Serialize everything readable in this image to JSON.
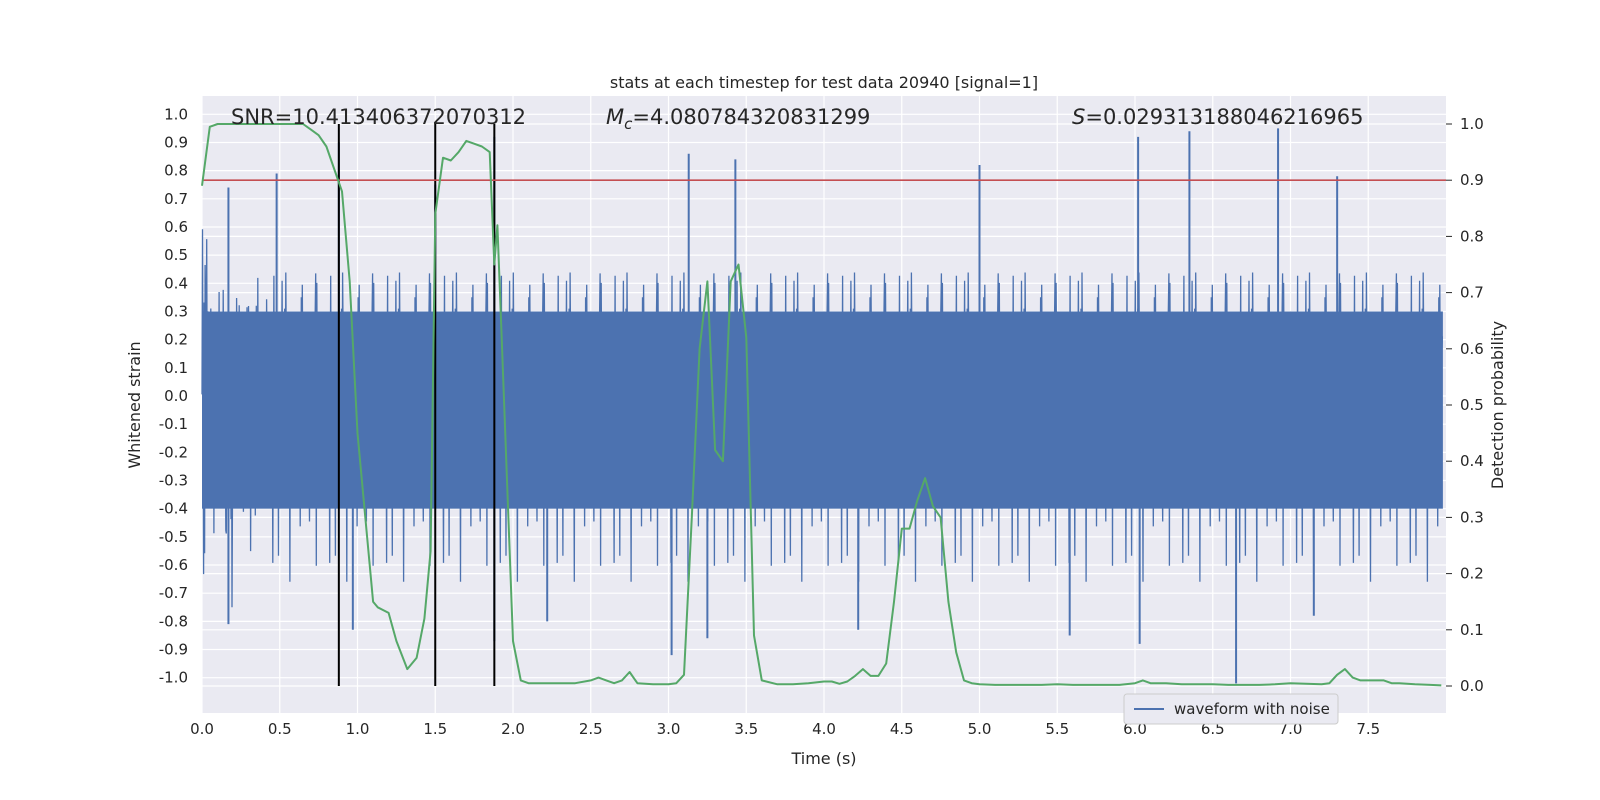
{
  "chart_data": {
    "type": "line",
    "title": "stats at each timestep for test data 20940 [signal=1]",
    "xlabel": "Time (s)",
    "ylabel": "Whitened strain",
    "y2label": "Detection probability",
    "xlim": [
      0.0,
      8.0
    ],
    "ylim": [
      -1.1,
      1.05
    ],
    "y2lim": [
      -0.05,
      1.03
    ],
    "xticks": [
      "0.0",
      "0.5",
      "1.0",
      "1.5",
      "2.0",
      "2.5",
      "3.0",
      "3.5",
      "4.0",
      "4.5",
      "5.0",
      "5.5",
      "6.0",
      "6.5",
      "7.0",
      "7.5"
    ],
    "yticks": [
      "1.0",
      "0.9",
      "0.8",
      "0.7",
      "0.6",
      "0.5",
      "0.4",
      "0.3",
      "0.2",
      "0.1",
      "0.0",
      "-0.1",
      "-0.2",
      "-0.3",
      "-0.4",
      "-0.5",
      "-0.6",
      "-0.7",
      "-0.8",
      "-0.9",
      "-1.0"
    ],
    "y2ticks": [
      "1.0",
      "0.9",
      "0.8",
      "0.7",
      "0.6",
      "0.5",
      "0.4",
      "0.3",
      "0.2",
      "0.1",
      "0.0"
    ],
    "annotations": {
      "snr": "SNR=10.413406372070312",
      "mc_symbol": "M",
      "mc_sub": "c",
      "mc_value": "=4.080784320831299",
      "s_symbol": "S",
      "s_value": "=0.029313188046216965"
    },
    "threshold": {
      "value": 0.9,
      "axis": "right",
      "color": "#c44e52"
    },
    "event_markers_s": [
      0.88,
      1.5,
      1.88
    ],
    "series": [
      {
        "name": "waveform with noise",
        "axis": "left",
        "color": "#4c72b0",
        "envelope": {
          "typical_amplitude": 0.42,
          "peaks": [
            {
              "t": 0.17,
              "v": 0.74
            },
            {
              "t": 0.48,
              "v": 0.79
            },
            {
              "t": 0.88,
              "v": 0.9
            },
            {
              "t": 1.5,
              "v": 0.75
            },
            {
              "t": 1.88,
              "v": 0.92
            },
            {
              "t": 3.13,
              "v": 0.86
            },
            {
              "t": 3.43,
              "v": 0.84
            },
            {
              "t": 5.0,
              "v": 0.82
            },
            {
              "t": 6.02,
              "v": 0.92
            },
            {
              "t": 6.35,
              "v": 0.94
            },
            {
              "t": 6.92,
              "v": 0.95
            },
            {
              "t": 7.3,
              "v": 0.78
            }
          ],
          "troughs": [
            {
              "t": 0.17,
              "v": -0.81
            },
            {
              "t": 0.97,
              "v": -0.83
            },
            {
              "t": 1.88,
              "v": -0.87
            },
            {
              "t": 2.22,
              "v": -0.8
            },
            {
              "t": 3.02,
              "v": -0.92
            },
            {
              "t": 3.25,
              "v": -0.86
            },
            {
              "t": 4.22,
              "v": -0.83
            },
            {
              "t": 5.58,
              "v": -0.85
            },
            {
              "t": 6.03,
              "v": -0.88
            },
            {
              "t": 6.65,
              "v": -1.02
            },
            {
              "t": 7.15,
              "v": -0.78
            }
          ]
        }
      },
      {
        "name": "detection probability",
        "axis": "right",
        "color": "#55a868",
        "x": [
          0.0,
          0.05,
          0.1,
          0.2,
          0.3,
          0.4,
          0.5,
          0.6,
          0.65,
          0.7,
          0.75,
          0.8,
          0.85,
          0.9,
          0.95,
          1.0,
          1.05,
          1.1,
          1.13,
          1.2,
          1.25,
          1.32,
          1.38,
          1.43,
          1.47,
          1.5,
          1.55,
          1.6,
          1.65,
          1.7,
          1.75,
          1.8,
          1.85,
          1.88,
          1.9,
          1.93,
          2.0,
          2.05,
          2.1,
          2.2,
          2.3,
          2.4,
          2.5,
          2.55,
          2.6,
          2.65,
          2.7,
          2.75,
          2.8,
          2.9,
          3.0,
          3.05,
          3.1,
          3.15,
          3.2,
          3.25,
          3.3,
          3.35,
          3.4,
          3.45,
          3.5,
          3.55,
          3.6,
          3.7,
          3.8,
          3.9,
          4.0,
          4.05,
          4.1,
          4.15,
          4.2,
          4.25,
          4.3,
          4.35,
          4.4,
          4.45,
          4.5,
          4.55,
          4.6,
          4.65,
          4.7,
          4.75,
          4.8,
          4.85,
          4.9,
          4.95,
          5.0,
          5.1,
          5.2,
          5.3,
          5.4,
          5.5,
          5.6,
          5.7,
          5.8,
          5.9,
          6.0,
          6.05,
          6.1,
          6.2,
          6.3,
          6.4,
          6.5,
          6.6,
          6.7,
          6.8,
          6.9,
          7.0,
          7.1,
          7.2,
          7.25,
          7.3,
          7.35,
          7.4,
          7.45,
          7.5,
          7.55,
          7.6,
          7.65,
          7.7,
          7.8,
          7.9,
          7.97
        ],
        "y": [
          0.89,
          0.995,
          1.0,
          1.0,
          1.0,
          1.0,
          1.0,
          1.0,
          1.0,
          0.99,
          0.98,
          0.96,
          0.92,
          0.88,
          0.72,
          0.45,
          0.3,
          0.15,
          0.14,
          0.13,
          0.08,
          0.03,
          0.05,
          0.12,
          0.24,
          0.84,
          0.94,
          0.935,
          0.95,
          0.97,
          0.965,
          0.96,
          0.95,
          0.75,
          0.82,
          0.6,
          0.08,
          0.01,
          0.005,
          0.005,
          0.005,
          0.005,
          0.01,
          0.015,
          0.01,
          0.005,
          0.01,
          0.025,
          0.005,
          0.003,
          0.003,
          0.005,
          0.02,
          0.3,
          0.6,
          0.72,
          0.42,
          0.4,
          0.72,
          0.75,
          0.62,
          0.09,
          0.01,
          0.003,
          0.003,
          0.005,
          0.008,
          0.008,
          0.004,
          0.008,
          0.018,
          0.03,
          0.018,
          0.018,
          0.04,
          0.15,
          0.28,
          0.28,
          0.33,
          0.37,
          0.32,
          0.3,
          0.15,
          0.06,
          0.01,
          0.005,
          0.003,
          0.002,
          0.002,
          0.002,
          0.002,
          0.003,
          0.002,
          0.002,
          0.002,
          0.002,
          0.005,
          0.01,
          0.005,
          0.005,
          0.003,
          0.003,
          0.003,
          0.002,
          0.002,
          0.002,
          0.003,
          0.005,
          0.004,
          0.003,
          0.005,
          0.02,
          0.03,
          0.015,
          0.01,
          0.01,
          0.01,
          0.01,
          0.005,
          0.005,
          0.003,
          0.002,
          0.001
        ]
      }
    ],
    "legend": {
      "position": "lower-right",
      "entries": [
        "waveform with noise"
      ]
    }
  }
}
